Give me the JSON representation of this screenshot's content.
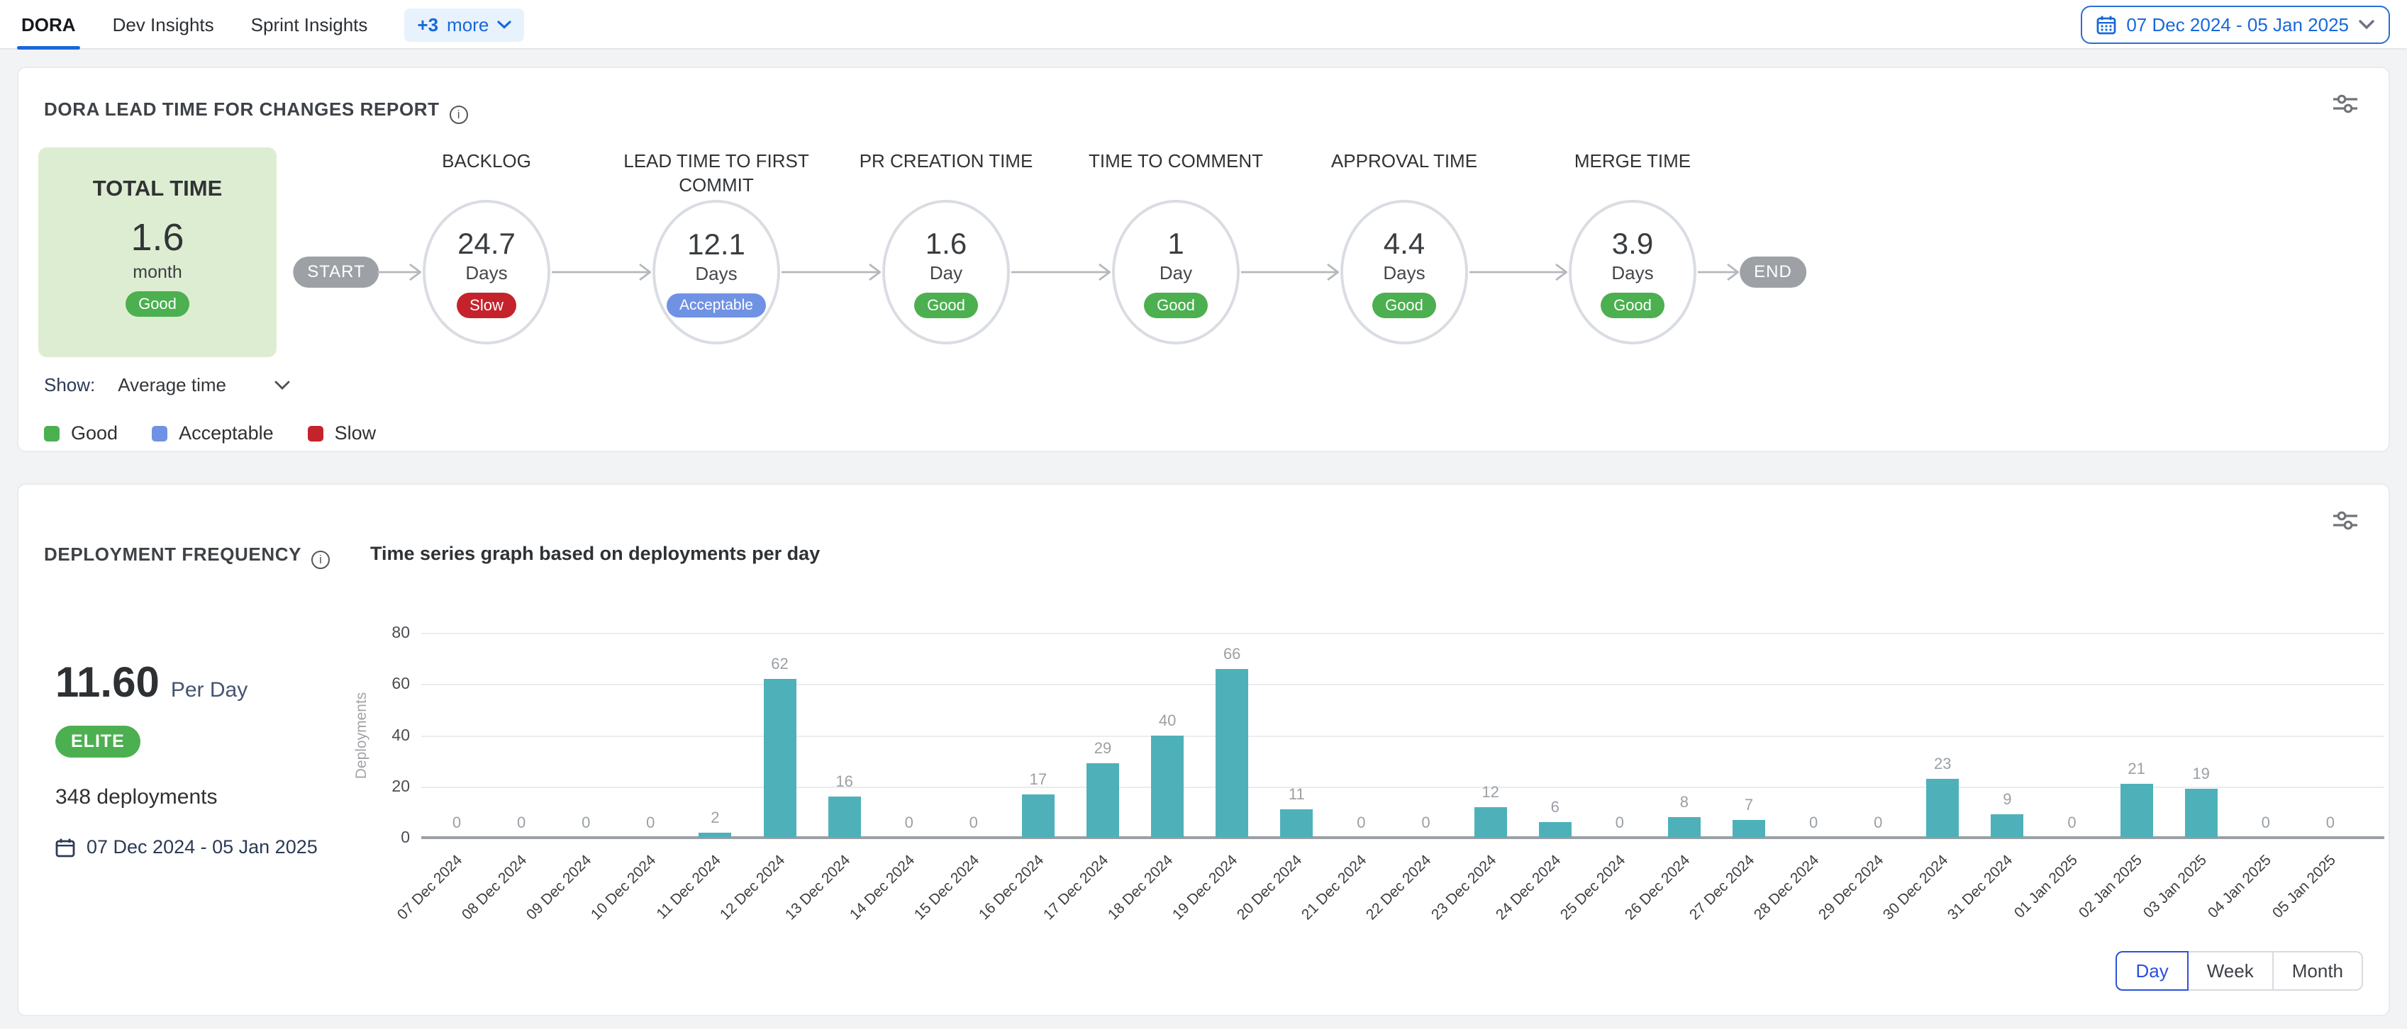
{
  "header": {
    "tabs": [
      {
        "label": "DORA",
        "active": true
      },
      {
        "label": "Dev Insights",
        "active": false
      },
      {
        "label": "Sprint Insights",
        "active": false
      }
    ],
    "more_tabs": {
      "count": "+3",
      "label": "more"
    },
    "date_range": "07 Dec 2024 - 05 Jan 2025"
  },
  "lead_time": {
    "title": "DORA LEAD TIME FOR CHANGES REPORT",
    "total": {
      "label": "TOTAL TIME",
      "value": "1.6",
      "unit": "month",
      "status": "Good"
    },
    "flow": {
      "start": "START",
      "end": "END"
    },
    "stages": [
      {
        "name": "BACKLOG",
        "value": "24.7",
        "unit": "Days",
        "status": "Slow"
      },
      {
        "name": "LEAD TIME TO FIRST COMMIT",
        "value": "12.1",
        "unit": "Days",
        "status": "Acceptable"
      },
      {
        "name": "PR CREATION TIME",
        "value": "1.6",
        "unit": "Day",
        "status": "Good"
      },
      {
        "name": "TIME TO COMMENT",
        "value": "1",
        "unit": "Day",
        "status": "Good"
      },
      {
        "name": "APPROVAL TIME",
        "value": "4.4",
        "unit": "Days",
        "status": "Good"
      },
      {
        "name": "MERGE TIME",
        "value": "3.9",
        "unit": "Days",
        "status": "Good"
      }
    ],
    "show": {
      "label": "Show:",
      "value": "Average time"
    },
    "legend": [
      {
        "label": "Good",
        "color": "#4caf50"
      },
      {
        "label": "Acceptable",
        "color": "#7092e4"
      },
      {
        "label": "Slow",
        "color": "#c5232c"
      }
    ],
    "status_colors": {
      "Good": "#4caf50",
      "Acceptable": "#7092e4",
      "Slow": "#c5232c"
    }
  },
  "deployment": {
    "title": "DEPLOYMENT FREQUENCY",
    "subtitle": "Time series graph based on deployments per day",
    "rate": {
      "value": "11.60",
      "unit": "Per Day"
    },
    "tier": "ELITE",
    "total": "348 deployments",
    "date_range": "07 Dec 2024 - 05 Jan 2025",
    "view_options": [
      {
        "label": "Day",
        "active": true
      },
      {
        "label": "Week",
        "active": false
      },
      {
        "label": "Month",
        "active": false
      }
    ]
  },
  "chart_data": {
    "type": "bar",
    "title": "Time series graph based on deployments per day",
    "xlabel": "",
    "ylabel": "Deployments",
    "ylim": [
      0,
      80
    ],
    "yticks": [
      0,
      20,
      40,
      60,
      80
    ],
    "grid": true,
    "legend_position": "none",
    "bar_color": "#4eb1ba",
    "categories": [
      "07 Dec 2024",
      "08 Dec 2024",
      "09 Dec 2024",
      "10 Dec 2024",
      "11 Dec 2024",
      "12 Dec 2024",
      "13 Dec 2024",
      "14 Dec 2024",
      "15 Dec 2024",
      "16 Dec 2024",
      "17 Dec 2024",
      "18 Dec 2024",
      "19 Dec 2024",
      "20 Dec 2024",
      "21 Dec 2024",
      "22 Dec 2024",
      "23 Dec 2024",
      "24 Dec 2024",
      "25 Dec 2024",
      "26 Dec 2024",
      "27 Dec 2024",
      "28 Dec 2024",
      "29 Dec 2024",
      "30 Dec 2024",
      "31 Dec 2024",
      "01 Jan 2025",
      "02 Jan 2025",
      "03 Jan 2025",
      "04 Jan 2025",
      "05 Jan 2025"
    ],
    "values": [
      0,
      0,
      0,
      0,
      2,
      62,
      16,
      0,
      0,
      17,
      29,
      40,
      66,
      11,
      0,
      0,
      12,
      6,
      0,
      8,
      7,
      0,
      0,
      23,
      9,
      0,
      21,
      19,
      0,
      0
    ]
  }
}
